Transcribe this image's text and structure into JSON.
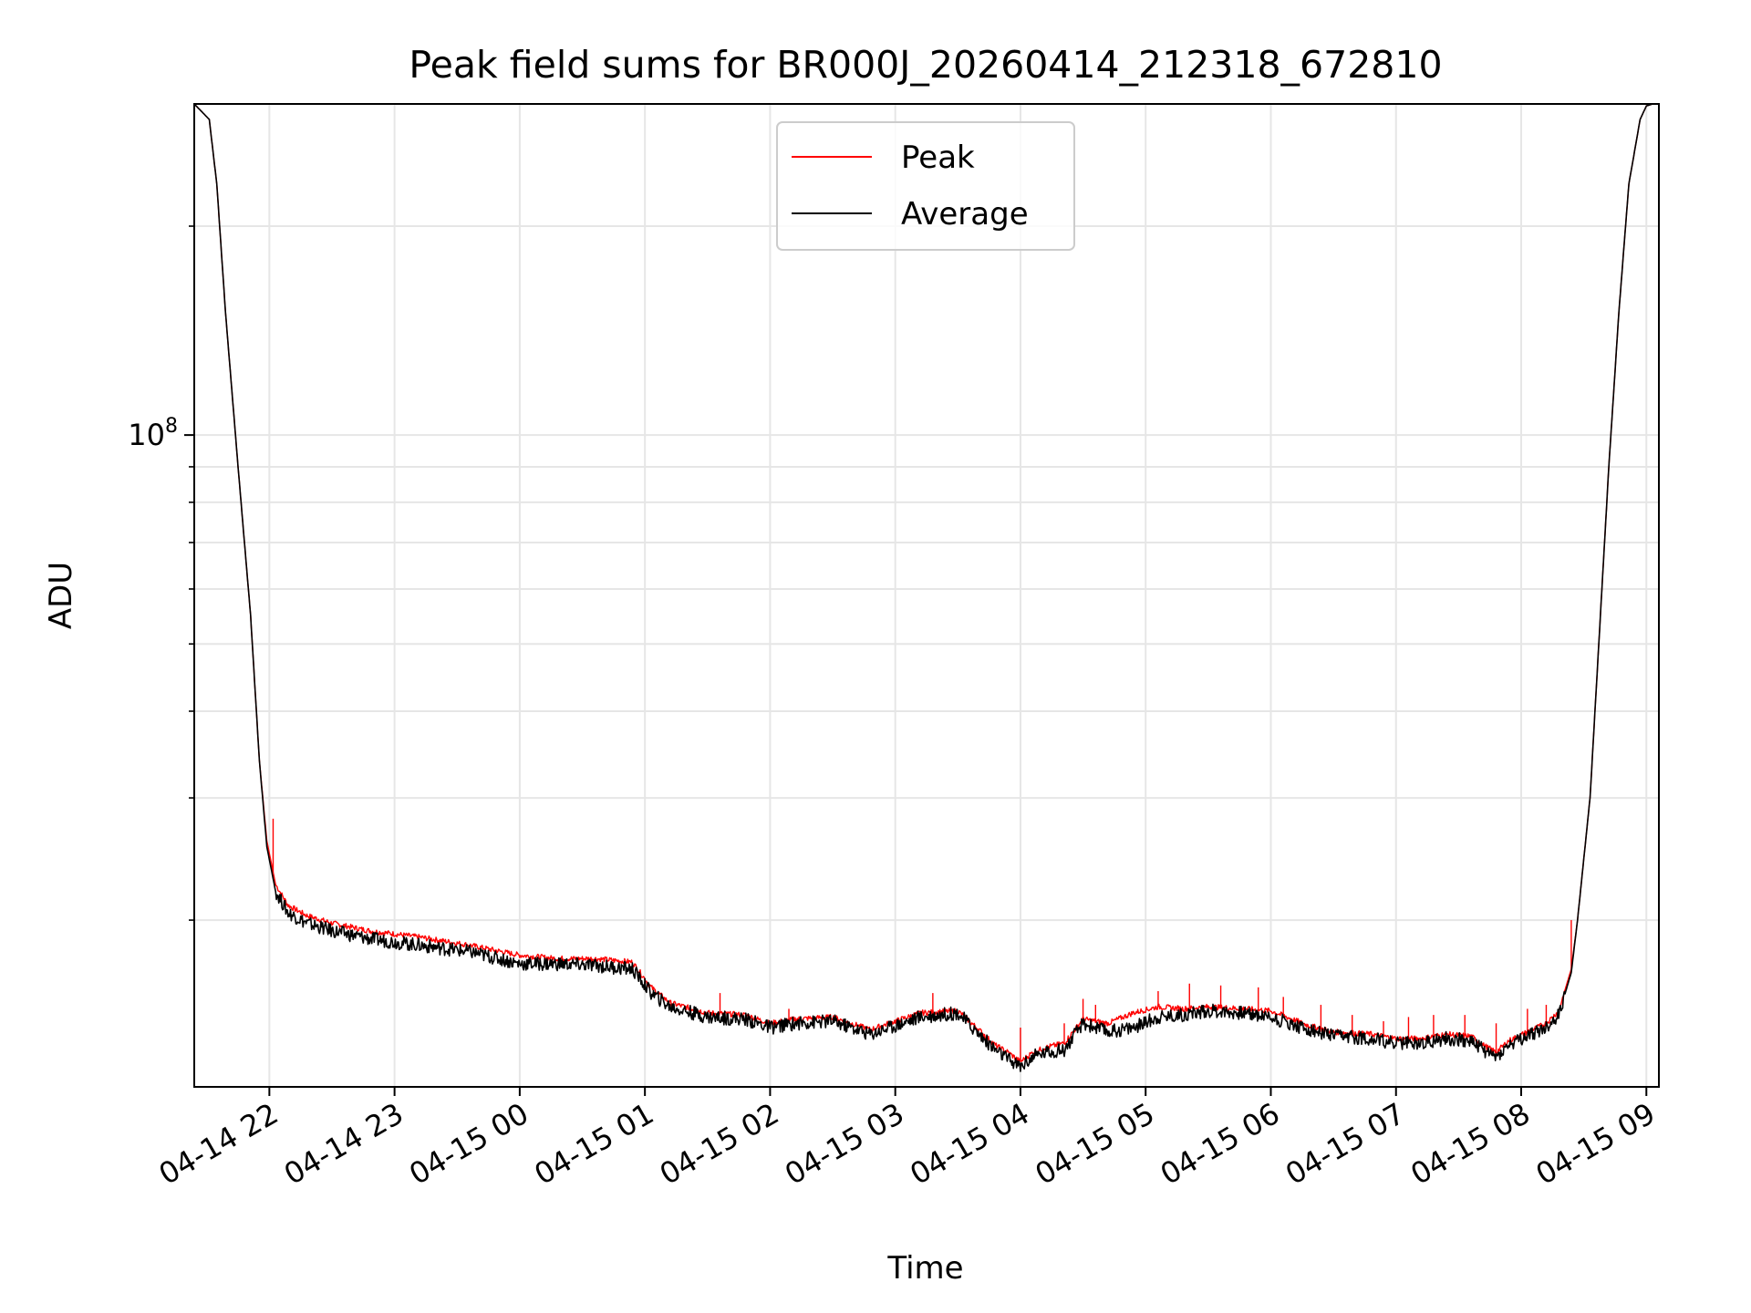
{
  "chart_data": {
    "type": "line",
    "title": "Peak field sums for BR000J_20260414_212318_672810",
    "xlabel": "Time",
    "ylabel": "ADU",
    "yscale": "log",
    "ylim": [
      11500000,
      300000000
    ],
    "xlim_hours": [
      -0.6,
      11.1
    ],
    "x_ticks": [
      {
        "hour": 0,
        "label": "04-14 22"
      },
      {
        "hour": 1,
        "label": "04-14 23"
      },
      {
        "hour": 2,
        "label": "04-15 00"
      },
      {
        "hour": 3,
        "label": "04-15 01"
      },
      {
        "hour": 4,
        "label": "04-15 02"
      },
      {
        "hour": 5,
        "label": "04-15 03"
      },
      {
        "hour": 6,
        "label": "04-15 04"
      },
      {
        "hour": 7,
        "label": "04-15 05"
      },
      {
        "hour": 8,
        "label": "04-15 06"
      },
      {
        "hour": 9,
        "label": "04-15 07"
      },
      {
        "hour": 10,
        "label": "04-15 08"
      },
      {
        "hour": 11,
        "label": "04-15 09"
      }
    ],
    "y_major_tick": {
      "value": 100000000,
      "base": "10",
      "exponent": "8"
    },
    "y_minor_ticks": [
      20000000,
      30000000,
      40000000,
      50000000,
      60000000,
      70000000,
      80000000,
      90000000,
      200000000
    ],
    "grid": true,
    "legend_position": "top-center",
    "series": [
      {
        "name": "Peak",
        "color": "#ff0000",
        "x": [
          -0.6,
          -0.48,
          -0.42,
          -0.35,
          -0.25,
          -0.15,
          -0.08,
          -0.02,
          0.05,
          0.15,
          0.3,
          0.5,
          0.8,
          1.2,
          1.6,
          2.0,
          2.3,
          2.6,
          2.9,
          3.05,
          3.2,
          3.5,
          3.8,
          4.0,
          4.2,
          4.5,
          4.8,
          5.0,
          5.2,
          5.5,
          5.65,
          5.8,
          5.9,
          6.0,
          6.1,
          6.2,
          6.35,
          6.5,
          6.7,
          6.9,
          7.1,
          7.3,
          7.5,
          7.8,
          8.0,
          8.3,
          8.5,
          8.8,
          9.0,
          9.2,
          9.4,
          9.6,
          9.7,
          9.8,
          9.9,
          10.05,
          10.2,
          10.3,
          10.4,
          10.45,
          10.55,
          10.62,
          10.7,
          10.78,
          10.86,
          10.95,
          11.0,
          11.05,
          11.1
        ],
        "y": [
          300000000,
          285000000,
          230000000,
          150000000,
          90000000,
          55000000,
          34000000,
          26000000,
          22500000,
          21000000,
          20300000,
          19800000,
          19300000,
          18900000,
          18400000,
          17800000,
          17600000,
          17600000,
          17400000,
          16000000,
          15200000,
          14700000,
          14600000,
          14200000,
          14400000,
          14500000,
          13900000,
          14300000,
          14700000,
          14800000,
          14000000,
          13200000,
          12900000,
          12500000,
          12900000,
          13100000,
          13300000,
          14400000,
          14200000,
          14700000,
          15000000,
          14900000,
          15000000,
          14900000,
          14800000,
          14100000,
          13800000,
          13700000,
          13500000,
          13500000,
          13700000,
          13600000,
          13200000,
          12900000,
          13400000,
          13800000,
          14200000,
          14800000,
          17000000,
          20000000,
          30000000,
          50000000,
          90000000,
          150000000,
          230000000,
          285000000,
          298000000,
          300000000,
          300000000
        ],
        "spikes": [
          {
            "hour": 0.03,
            "value": 28000000
          },
          {
            "hour": 3.6,
            "value": 15700000
          },
          {
            "hour": 4.15,
            "value": 14900000
          },
          {
            "hour": 5.3,
            "value": 15700000
          },
          {
            "hour": 6.0,
            "value": 14000000
          },
          {
            "hour": 6.35,
            "value": 14200000
          },
          {
            "hour": 6.5,
            "value": 15400000
          },
          {
            "hour": 6.6,
            "value": 15100000
          },
          {
            "hour": 7.1,
            "value": 15800000
          },
          {
            "hour": 7.35,
            "value": 16200000
          },
          {
            "hour": 7.6,
            "value": 16100000
          },
          {
            "hour": 7.9,
            "value": 16000000
          },
          {
            "hour": 8.1,
            "value": 15500000
          },
          {
            "hour": 8.4,
            "value": 15100000
          },
          {
            "hour": 8.65,
            "value": 14600000
          },
          {
            "hour": 8.9,
            "value": 14300000
          },
          {
            "hour": 9.1,
            "value": 14500000
          },
          {
            "hour": 9.3,
            "value": 14600000
          },
          {
            "hour": 9.55,
            "value": 14600000
          },
          {
            "hour": 9.8,
            "value": 14200000
          },
          {
            "hour": 10.05,
            "value": 14900000
          },
          {
            "hour": 10.2,
            "value": 15100000
          },
          {
            "hour": 10.4,
            "value": 20000000
          }
        ]
      },
      {
        "name": "Average",
        "color": "#000000",
        "x": [
          -0.6,
          -0.48,
          -0.42,
          -0.35,
          -0.25,
          -0.15,
          -0.08,
          -0.02,
          0.05,
          0.15,
          0.3,
          0.5,
          0.8,
          1.2,
          1.6,
          2.0,
          2.3,
          2.6,
          2.9,
          3.05,
          3.2,
          3.5,
          3.8,
          4.0,
          4.2,
          4.5,
          4.8,
          5.0,
          5.2,
          5.5,
          5.65,
          5.8,
          5.9,
          6.0,
          6.1,
          6.2,
          6.35,
          6.5,
          6.7,
          6.9,
          7.1,
          7.3,
          7.5,
          7.8,
          8.0,
          8.3,
          8.5,
          8.8,
          9.0,
          9.2,
          9.4,
          9.6,
          9.7,
          9.8,
          9.9,
          10.05,
          10.2,
          10.3,
          10.4,
          10.45,
          10.55,
          10.62,
          10.7,
          10.78,
          10.86,
          10.95,
          11.0,
          11.05,
          11.1
        ],
        "y": [
          300000000,
          285000000,
          230000000,
          150000000,
          90000000,
          55000000,
          34000000,
          25500000,
          22000000,
          20500000,
          19800000,
          19300000,
          18800000,
          18400000,
          18000000,
          17300000,
          17300000,
          17200000,
          17000000,
          15700000,
          15000000,
          14500000,
          14400000,
          14000000,
          14200000,
          14300000,
          13700000,
          14100000,
          14500000,
          14700000,
          13800000,
          13000000,
          12600000,
          12300000,
          12700000,
          12900000,
          13000000,
          14200000,
          13800000,
          14000000,
          14500000,
          14600000,
          14800000,
          14700000,
          14500000,
          13900000,
          13600000,
          13500000,
          13300000,
          13300000,
          13500000,
          13400000,
          13000000,
          12700000,
          13200000,
          13600000,
          14000000,
          14600000,
          16800000,
          20000000,
          30000000,
          50000000,
          90000000,
          150000000,
          230000000,
          285000000,
          298000000,
          300000000,
          300000000
        ]
      }
    ]
  }
}
